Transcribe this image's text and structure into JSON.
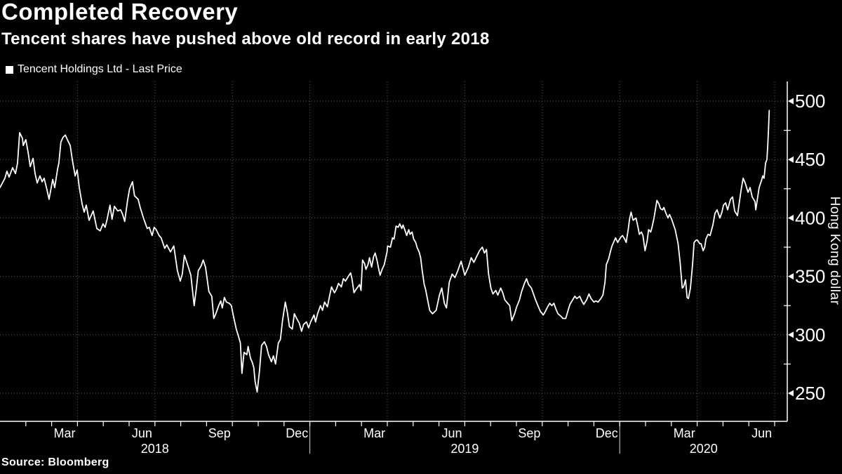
{
  "header": {
    "title": "Completed Recovery",
    "subtitle": "Tencent shares have pushed above old record in early 2018"
  },
  "legend": {
    "label": "Tencent Holdings Ltd - Last Price",
    "swatch_color": "#ffffff"
  },
  "footer": {
    "source": "Source: Bloomberg"
  },
  "colors": {
    "background": "#000000",
    "line": "#ffffff",
    "grid": "#5b5b5b",
    "axis": "#ffffff",
    "text": "#ffffff"
  },
  "chart_data": {
    "type": "line",
    "title": "Completed Recovery",
    "subtitle": "Tencent shares have pushed above old record in early 2018",
    "series_name": "Tencent Holdings Ltd - Last Price",
    "ylabel": "Hong Kong dollar",
    "y_ticks": [
      250,
      300,
      350,
      400,
      450,
      500
    ],
    "y_minor_ticks": [
      275,
      325,
      375,
      425,
      475
    ],
    "ylim": [
      226,
      517
    ],
    "x_unit": "months since 2018-01-01",
    "xlim": [
      0,
      30.5
    ],
    "grid": true,
    "gridline_style": "dotted",
    "legend_position": "top-left",
    "month_labels": [
      {
        "t": 2.5,
        "label": "Mar"
      },
      {
        "t": 5.5,
        "label": "Jun"
      },
      {
        "t": 8.5,
        "label": "Sep"
      },
      {
        "t": 11.5,
        "label": "Dec"
      },
      {
        "t": 14.5,
        "label": "Mar"
      },
      {
        "t": 17.5,
        "label": "Jun"
      },
      {
        "t": 20.5,
        "label": "Sep"
      },
      {
        "t": 23.5,
        "label": "Dec"
      },
      {
        "t": 26.5,
        "label": "Mar"
      },
      {
        "t": 29.5,
        "label": "Jun"
      }
    ],
    "year_labels": [
      {
        "t": 6,
        "label": "2018"
      },
      {
        "t": 18,
        "label": "2019"
      },
      {
        "t": 27.25,
        "label": "2020"
      }
    ],
    "year_separators_t": [
      12,
      24
    ],
    "grid_t": [
      3,
      6,
      9,
      12,
      15,
      18,
      21,
      24,
      27,
      30
    ],
    "points": [
      [
        0.0,
        426
      ],
      [
        0.19,
        434
      ],
      [
        0.27,
        440
      ],
      [
        0.35,
        435
      ],
      [
        0.49,
        443
      ],
      [
        0.6,
        438
      ],
      [
        0.68,
        447
      ],
      [
        0.76,
        473
      ],
      [
        0.87,
        468
      ],
      [
        0.9,
        462
      ],
      [
        1.0,
        467
      ],
      [
        1.09,
        456
      ],
      [
        1.17,
        444
      ],
      [
        1.28,
        451
      ],
      [
        1.36,
        438
      ],
      [
        1.44,
        430
      ],
      [
        1.55,
        436
      ],
      [
        1.63,
        431
      ],
      [
        1.71,
        434
      ],
      [
        1.82,
        424
      ],
      [
        1.9,
        416
      ],
      [
        2.04,
        433
      ],
      [
        2.12,
        426
      ],
      [
        2.23,
        442
      ],
      [
        2.28,
        447
      ],
      [
        2.36,
        465
      ],
      [
        2.44,
        469
      ],
      [
        2.53,
        471
      ],
      [
        2.63,
        466
      ],
      [
        2.72,
        462
      ],
      [
        2.8,
        450
      ],
      [
        2.91,
        436
      ],
      [
        2.99,
        441
      ],
      [
        3.07,
        426
      ],
      [
        3.18,
        412
      ],
      [
        3.26,
        405
      ],
      [
        3.34,
        411
      ],
      [
        3.45,
        398
      ],
      [
        3.53,
        402
      ],
      [
        3.61,
        406
      ],
      [
        3.75,
        391
      ],
      [
        3.88,
        389
      ],
      [
        3.99,
        395
      ],
      [
        4.07,
        392
      ],
      [
        4.15,
        399
      ],
      [
        4.26,
        411
      ],
      [
        4.34,
        399
      ],
      [
        4.43,
        410
      ],
      [
        4.56,
        406
      ],
      [
        4.67,
        407
      ],
      [
        4.75,
        403
      ],
      [
        4.83,
        397
      ],
      [
        4.94,
        415
      ],
      [
        5.02,
        425
      ],
      [
        5.13,
        431
      ],
      [
        5.21,
        419
      ],
      [
        5.35,
        416
      ],
      [
        5.43,
        409
      ],
      [
        5.57,
        399
      ],
      [
        5.7,
        391
      ],
      [
        5.78,
        392
      ],
      [
        5.89,
        385
      ],
      [
        5.97,
        392
      ],
      [
        6.05,
        390
      ],
      [
        6.16,
        385
      ],
      [
        6.24,
        383
      ],
      [
        6.38,
        374
      ],
      [
        6.46,
        377
      ],
      [
        6.6,
        371
      ],
      [
        6.73,
        376
      ],
      [
        6.87,
        355
      ],
      [
        6.98,
        346
      ],
      [
        7.06,
        352
      ],
      [
        7.14,
        368
      ],
      [
        7.25,
        361
      ],
      [
        7.39,
        351
      ],
      [
        7.52,
        325
      ],
      [
        7.6,
        339
      ],
      [
        7.68,
        355
      ],
      [
        7.79,
        359
      ],
      [
        7.87,
        364
      ],
      [
        7.96,
        358
      ],
      [
        8.09,
        337
      ],
      [
        8.2,
        333
      ],
      [
        8.28,
        314
      ],
      [
        8.36,
        318
      ],
      [
        8.47,
        325
      ],
      [
        8.55,
        329
      ],
      [
        8.61,
        323
      ],
      [
        8.69,
        332
      ],
      [
        8.77,
        328
      ],
      [
        8.88,
        327
      ],
      [
        8.96,
        325
      ],
      [
        9.04,
        316
      ],
      [
        9.15,
        305
      ],
      [
        9.23,
        299
      ],
      [
        9.31,
        293
      ],
      [
        9.37,
        267
      ],
      [
        9.45,
        285
      ],
      [
        9.56,
        283
      ],
      [
        9.61,
        290
      ],
      [
        9.7,
        280
      ],
      [
        9.76,
        277
      ],
      [
        9.83,
        272
      ],
      [
        9.88,
        260
      ],
      [
        9.96,
        251
      ],
      [
        10.05,
        269
      ],
      [
        10.13,
        291
      ],
      [
        10.24,
        294
      ],
      [
        10.32,
        290
      ],
      [
        10.4,
        283
      ],
      [
        10.51,
        277
      ],
      [
        10.59,
        282
      ],
      [
        10.67,
        275
      ],
      [
        10.78,
        293
      ],
      [
        10.86,
        296
      ],
      [
        10.94,
        312
      ],
      [
        11.05,
        328
      ],
      [
        11.13,
        319
      ],
      [
        11.21,
        307
      ],
      [
        11.32,
        305
      ],
      [
        11.4,
        318
      ],
      [
        11.49,
        314
      ],
      [
        11.59,
        310
      ],
      [
        11.68,
        303
      ],
      [
        11.76,
        309
      ],
      [
        11.87,
        311
      ],
      [
        11.95,
        306
      ],
      [
        12.03,
        311
      ],
      [
        12.16,
        317
      ],
      [
        12.22,
        311
      ],
      [
        12.3,
        318
      ],
      [
        12.41,
        325
      ],
      [
        12.49,
        321
      ],
      [
        12.57,
        328
      ],
      [
        12.68,
        324
      ],
      [
        12.76,
        333
      ],
      [
        12.84,
        341
      ],
      [
        12.95,
        336
      ],
      [
        13.03,
        339
      ],
      [
        13.11,
        344
      ],
      [
        13.22,
        341
      ],
      [
        13.3,
        348
      ],
      [
        13.38,
        346
      ],
      [
        13.49,
        350
      ],
      [
        13.58,
        353
      ],
      [
        13.63,
        348
      ],
      [
        13.71,
        336
      ],
      [
        13.79,
        339
      ],
      [
        13.93,
        343
      ],
      [
        13.98,
        338
      ],
      [
        14.04,
        364
      ],
      [
        14.12,
        361
      ],
      [
        14.17,
        356
      ],
      [
        14.25,
        360
      ],
      [
        14.31,
        366
      ],
      [
        14.39,
        358
      ],
      [
        14.47,
        367
      ],
      [
        14.53,
        370
      ],
      [
        14.61,
        363
      ],
      [
        14.66,
        357
      ],
      [
        14.72,
        351
      ],
      [
        14.8,
        356
      ],
      [
        14.88,
        360
      ],
      [
        14.99,
        371
      ],
      [
        15.01,
        376
      ],
      [
        15.12,
        375
      ],
      [
        15.2,
        383
      ],
      [
        15.26,
        382
      ],
      [
        15.34,
        393
      ],
      [
        15.42,
        392
      ],
      [
        15.48,
        395
      ],
      [
        15.56,
        391
      ],
      [
        15.61,
        394
      ],
      [
        15.69,
        389
      ],
      [
        15.75,
        385
      ],
      [
        15.83,
        390
      ],
      [
        15.88,
        386
      ],
      [
        15.96,
        388
      ],
      [
        16.02,
        382
      ],
      [
        16.1,
        379
      ],
      [
        16.15,
        375
      ],
      [
        16.23,
        371
      ],
      [
        16.29,
        366
      ],
      [
        16.35,
        355
      ],
      [
        16.43,
        343
      ],
      [
        16.48,
        339
      ],
      [
        16.56,
        330
      ],
      [
        16.64,
        321
      ],
      [
        16.75,
        318
      ],
      [
        16.89,
        321
      ],
      [
        17.02,
        334
      ],
      [
        17.11,
        340
      ],
      [
        17.21,
        327
      ],
      [
        17.29,
        323
      ],
      [
        17.4,
        345
      ],
      [
        17.51,
        352
      ],
      [
        17.62,
        349
      ],
      [
        17.73,
        355
      ],
      [
        17.86,
        363
      ],
      [
        18.0,
        351
      ],
      [
        18.14,
        358
      ],
      [
        18.25,
        366
      ],
      [
        18.35,
        362
      ],
      [
        18.46,
        367
      ],
      [
        18.57,
        372
      ],
      [
        18.68,
        375
      ],
      [
        18.76,
        370
      ],
      [
        18.84,
        373
      ],
      [
        18.92,
        352
      ],
      [
        19.01,
        340
      ],
      [
        19.09,
        335
      ],
      [
        19.2,
        338
      ],
      [
        19.28,
        334
      ],
      [
        19.39,
        340
      ],
      [
        19.47,
        336
      ],
      [
        19.55,
        330
      ],
      [
        19.66,
        327
      ],
      [
        19.74,
        325
      ],
      [
        19.82,
        312
      ],
      [
        19.93,
        318
      ],
      [
        20.01,
        324
      ],
      [
        20.12,
        330
      ],
      [
        20.2,
        337
      ],
      [
        20.31,
        344
      ],
      [
        20.39,
        348
      ],
      [
        20.47,
        343
      ],
      [
        20.58,
        340
      ],
      [
        20.66,
        335
      ],
      [
        20.74,
        330
      ],
      [
        20.85,
        324
      ],
      [
        20.93,
        320
      ],
      [
        21.04,
        317
      ],
      [
        21.12,
        320
      ],
      [
        21.21,
        324
      ],
      [
        21.29,
        327
      ],
      [
        21.37,
        325
      ],
      [
        21.45,
        327
      ],
      [
        21.53,
        322
      ],
      [
        21.61,
        318
      ],
      [
        21.72,
        316
      ],
      [
        21.8,
        314
      ],
      [
        21.91,
        314
      ],
      [
        21.99,
        320
      ],
      [
        22.07,
        326
      ],
      [
        22.18,
        330
      ],
      [
        22.26,
        333
      ],
      [
        22.34,
        331
      ],
      [
        22.45,
        333
      ],
      [
        22.53,
        329
      ],
      [
        22.61,
        326
      ],
      [
        22.72,
        330
      ],
      [
        22.81,
        335
      ],
      [
        22.89,
        331
      ],
      [
        23.0,
        328
      ],
      [
        23.08,
        329
      ],
      [
        23.16,
        328
      ],
      [
        23.27,
        331
      ],
      [
        23.35,
        334
      ],
      [
        23.43,
        345
      ],
      [
        23.48,
        360
      ],
      [
        23.57,
        365
      ],
      [
        23.65,
        372
      ],
      [
        23.7,
        376
      ],
      [
        23.78,
        380
      ],
      [
        23.84,
        383
      ],
      [
        23.92,
        379
      ],
      [
        23.97,
        381
      ],
      [
        24.06,
        384
      ],
      [
        24.11,
        385
      ],
      [
        24.19,
        382
      ],
      [
        24.25,
        379
      ],
      [
        24.33,
        390
      ],
      [
        24.38,
        399
      ],
      [
        24.44,
        405
      ],
      [
        24.52,
        398
      ],
      [
        24.63,
        400
      ],
      [
        24.71,
        392
      ],
      [
        24.76,
        386
      ],
      [
        24.84,
        388
      ],
      [
        24.9,
        385
      ],
      [
        24.98,
        372
      ],
      [
        25.06,
        380
      ],
      [
        25.12,
        390
      ],
      [
        25.2,
        388
      ],
      [
        25.25,
        392
      ],
      [
        25.33,
        400
      ],
      [
        25.44,
        415
      ],
      [
        25.52,
        412
      ],
      [
        25.58,
        408
      ],
      [
        25.66,
        407
      ],
      [
        25.71,
        409
      ],
      [
        25.79,
        404
      ],
      [
        25.87,
        400
      ],
      [
        25.93,
        403
      ],
      [
        26.01,
        399
      ],
      [
        26.07,
        395
      ],
      [
        26.15,
        390
      ],
      [
        26.26,
        378
      ],
      [
        26.34,
        362
      ],
      [
        26.42,
        340
      ],
      [
        26.47,
        341
      ],
      [
        26.55,
        347
      ],
      [
        26.61,
        332
      ],
      [
        26.66,
        331
      ],
      [
        26.74,
        340
      ],
      [
        26.82,
        360
      ],
      [
        26.88,
        379
      ],
      [
        26.96,
        381
      ],
      [
        27.01,
        381
      ],
      [
        27.1,
        378
      ],
      [
        27.15,
        378
      ],
      [
        27.23,
        372
      ],
      [
        27.29,
        375
      ],
      [
        27.34,
        382
      ],
      [
        27.42,
        386
      ],
      [
        27.5,
        385
      ],
      [
        27.61,
        394
      ],
      [
        27.69,
        404
      ],
      [
        27.77,
        407
      ],
      [
        27.88,
        400
      ],
      [
        27.96,
        405
      ],
      [
        28.02,
        411
      ],
      [
        28.1,
        413
      ],
      [
        28.18,
        407
      ],
      [
        28.29,
        416
      ],
      [
        28.37,
        418
      ],
      [
        28.45,
        406
      ],
      [
        28.56,
        402
      ],
      [
        28.7,
        424
      ],
      [
        28.78,
        434
      ],
      [
        28.86,
        430
      ],
      [
        28.97,
        422
      ],
      [
        29.05,
        426
      ],
      [
        29.13,
        418
      ],
      [
        29.24,
        414
      ],
      [
        29.27,
        407
      ],
      [
        29.4,
        426
      ],
      [
        29.49,
        432
      ],
      [
        29.54,
        436
      ],
      [
        29.59,
        434
      ],
      [
        29.65,
        447
      ],
      [
        29.7,
        450
      ],
      [
        29.73,
        461
      ],
      [
        29.76,
        475
      ],
      [
        29.79,
        492
      ]
    ]
  }
}
